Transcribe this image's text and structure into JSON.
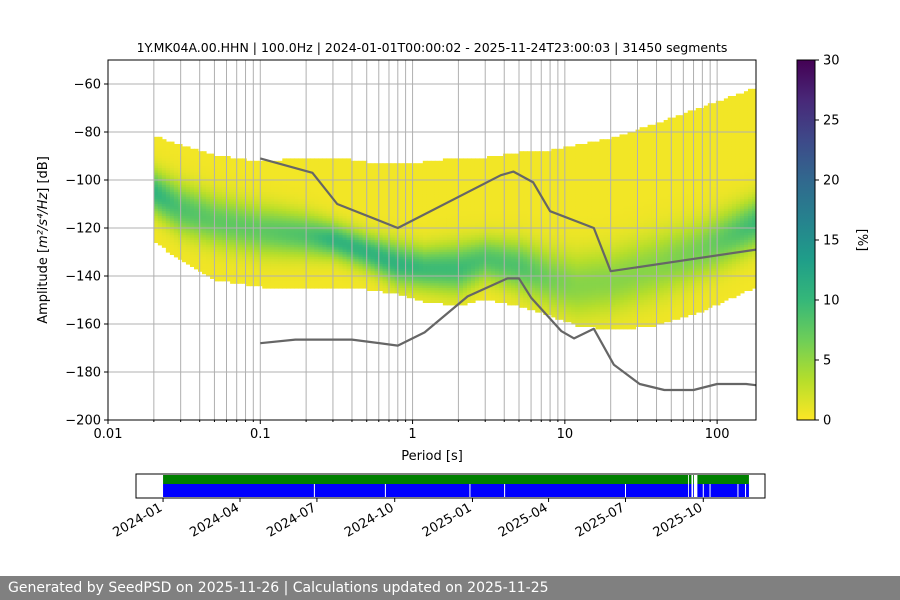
{
  "footer": "Generated by SeedPSD on 2025-11-26 | Calculations updated on 2025-11-25",
  "colors": {
    "curve": "#666666",
    "grid": "#b0b0b0",
    "avail_green": "#008000",
    "avail_blue": "#0000ff",
    "viridis": [
      "#fde725",
      "#b5de2b",
      "#6ece58",
      "#35b779",
      "#1f9e89",
      "#26828e",
      "#31688e",
      "#3e4989",
      "#482878",
      "#440154"
    ]
  },
  "chart_data": [
    {
      "type": "heatmap",
      "title": "1Y.MK04A.00.HHN | 100.0Hz | 2024-01-01T00:00:02 - 2025-11-24T23:00:03 | 31450 segments",
      "xlabel": "Period [s]",
      "ylabel_prefix": "Amplitude [",
      "ylabel_unit": "m²/s⁴/Hz",
      "ylabel_suffix": "] [dB]",
      "xscale": "log",
      "xlim": [
        0.01,
        180
      ],
      "ylim": [
        -200,
        -50
      ],
      "x_ticks": [
        0.01,
        0.1,
        1,
        10,
        100
      ],
      "x_tick_labels": [
        "0.01",
        "0.1",
        "1",
        "10",
        "100"
      ],
      "y_ticks": [
        -200,
        -180,
        -160,
        -140,
        -120,
        -100,
        -80,
        -60
      ],
      "y_tick_labels": [
        "−200",
        "−180",
        "−160",
        "−140",
        "−120",
        "−100",
        "−80",
        "−60"
      ],
      "grid": true,
      "colorbar": {
        "label": "[%]",
        "range": [
          0,
          30
        ],
        "ticks": [
          0,
          5,
          10,
          15,
          20,
          25,
          30
        ],
        "tick_labels": [
          "0",
          "5",
          "10",
          "15",
          "20",
          "25",
          "30"
        ]
      },
      "psd_period_grid": [
        0.02,
        0.03,
        0.05,
        0.1,
        0.2,
        0.3,
        0.5,
        0.8,
        1.2,
        2,
        3,
        5,
        8,
        12,
        20,
        40,
        80,
        180
      ],
      "psd_mode_db": [
        -105,
        -112,
        -117,
        -121,
        -123,
        -125,
        -130,
        -135,
        -137,
        -137,
        -133,
        -136,
        -141,
        -144,
        -142,
        -136,
        -129,
        -118
      ],
      "psd_upper_db": [
        -82,
        -86,
        -90,
        -93,
        -91,
        -91,
        -93,
        -93,
        -93,
        -91,
        -91,
        -89,
        -88,
        -86,
        -83,
        -77,
        -70,
        -62
      ],
      "psd_lower_db": [
        -125,
        -133,
        -141,
        -144,
        -145,
        -145,
        -145,
        -147,
        -150,
        -152,
        -149,
        -152,
        -156,
        -160,
        -162,
        -160,
        -154,
        -144
      ],
      "psd_width_db": [
        6,
        7,
        7,
        7,
        6,
        5,
        5,
        6,
        6,
        7,
        6,
        7,
        8,
        9,
        9,
        9,
        8,
        7
      ],
      "psd_peak_pct": [
        10,
        8,
        7,
        7,
        8,
        10,
        10,
        10,
        9,
        9,
        8,
        8,
        6,
        5,
        5,
        5,
        6,
        9
      ],
      "series": [
        {
          "x": [
            0.1,
            0.22,
            0.32,
            0.8,
            3.8,
            4.6,
            6.2,
            8,
            15.5,
            20,
            180
          ],
          "y": [
            -91,
            -97,
            -110,
            -120,
            -98,
            -96.5,
            -101,
            -113,
            -120,
            -138,
            -129
          ]
        },
        {
          "x": [
            0.1,
            0.17,
            0.4,
            0.8,
            1.2,
            2.3,
            4.2,
            5,
            6,
            9.5,
            11.5,
            15.5,
            21,
            31,
            45,
            70,
            100,
            155,
            180
          ],
          "y": [
            -168,
            -166.5,
            -166.5,
            -169,
            -163.5,
            -148.5,
            -141,
            -141,
            -149,
            -163,
            -166,
            -162,
            -177,
            -185,
            -187.5,
            -187.5,
            -185,
            -185,
            -185.5
          ]
        }
      ]
    },
    {
      "type": "bar",
      "xlim": [
        "2023-11-30",
        "2025-12-13"
      ],
      "x_ticks": [
        "2024-01-01",
        "2024-04-01",
        "2024-07-01",
        "2024-10-01",
        "2025-01-01",
        "2025-04-01",
        "2025-07-01",
        "2025-10-01"
      ],
      "x_tick_labels": [
        "2024-01",
        "2024-04",
        "2024-07",
        "2024-10",
        "2025-01",
        "2025-04",
        "2025-07",
        "2025-10"
      ],
      "series": [
        {
          "name": "",
          "color": "green",
          "periods": [
            [
              "2024-01-01",
              "2025-09-13"
            ],
            [
              "2025-09-14",
              "2025-09-17"
            ],
            [
              "2025-09-19",
              "2025-09-20"
            ],
            [
              "2025-09-24",
              "2025-11-24"
            ]
          ]
        },
        {
          "name": "",
          "color": "blue",
          "periods": [
            [
              "2024-01-01",
              "2025-09-13"
            ],
            [
              "2025-09-14",
              "2025-09-17"
            ],
            [
              "2025-09-19",
              "2025-09-20"
            ],
            [
              "2025-09-24",
              "2025-11-24"
            ]
          ],
          "gap_dates": [
            "2024-06-28",
            "2024-09-20",
            "2024-12-29",
            "2025-02-08",
            "2025-07-01",
            "2025-10-01",
            "2025-10-09",
            "2025-11-11",
            "2025-11-20"
          ]
        }
      ]
    }
  ]
}
